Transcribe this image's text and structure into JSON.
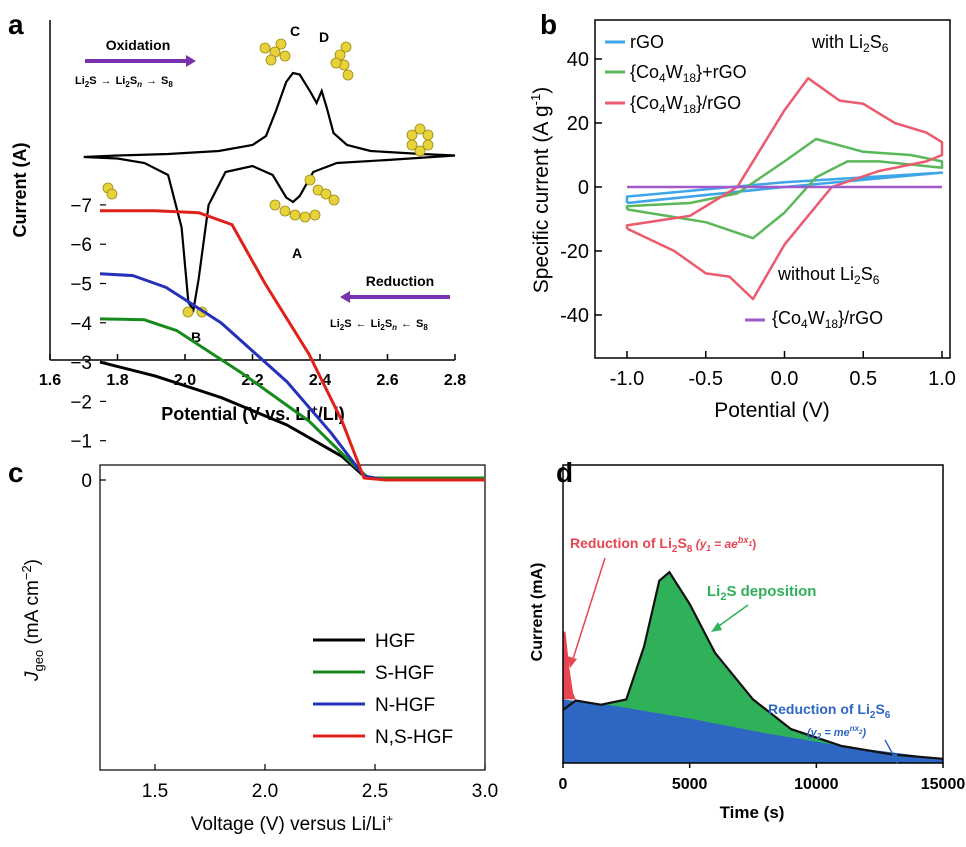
{
  "chart_data": [
    {
      "panel": "a",
      "type": "line",
      "xlabel": "Potential (V vs. Li",
      "xlabel_sup": "+",
      "xlabel_tail": "/Li)",
      "ylabel": "Current (A)",
      "xlim": [
        1.6,
        2.8
      ],
      "xticks": [
        "1.6",
        "1.8",
        "2.0",
        "2.2",
        "2.4",
        "2.6",
        "2.8"
      ],
      "peaks": [
        {
          "label": "A",
          "x": 2.32,
          "kind": "cathodic"
        },
        {
          "label": "B",
          "x": 2.02,
          "kind": "cathodic"
        },
        {
          "label": "C",
          "x": 2.32,
          "kind": "anodic"
        },
        {
          "label": "D",
          "x": 2.4,
          "kind": "anodic"
        }
      ],
      "annotations": {
        "oxidation": "Oxidation",
        "reduction": "Reduction",
        "ox_scheme": [
          "Li",
          "2",
          "S",
          "→",
          "Li",
          "2",
          "S",
          "n",
          "→",
          "S",
          "8"
        ],
        "red_scheme": [
          "Li",
          "2",
          "S",
          "←",
          "Li",
          "2",
          "S",
          "n",
          "←",
          "S",
          "8"
        ]
      },
      "curve": [
        [
          1.7,
          0.02
        ],
        [
          1.8,
          0.01
        ],
        [
          1.88,
          -0.02
        ],
        [
          1.95,
          -0.1
        ],
        [
          1.99,
          -0.45
        ],
        [
          2.01,
          -0.95
        ],
        [
          2.025,
          -1.0
        ],
        [
          2.04,
          -0.8
        ],
        [
          2.07,
          -0.3
        ],
        [
          2.12,
          -0.08
        ],
        [
          2.2,
          -0.04
        ],
        [
          2.26,
          -0.1
        ],
        [
          2.3,
          -0.25
        ],
        [
          2.32,
          -0.28
        ],
        [
          2.34,
          -0.24
        ],
        [
          2.38,
          -0.08
        ],
        [
          2.45,
          -0.02
        ],
        [
          2.6,
          0.0
        ],
        [
          2.8,
          0.03
        ],
        [
          2.7,
          0.04
        ],
        [
          2.55,
          0.06
        ],
        [
          2.48,
          0.1
        ],
        [
          2.44,
          0.18
        ],
        [
          2.42,
          0.35
        ],
        [
          2.405,
          0.46
        ],
        [
          2.39,
          0.38
        ],
        [
          2.37,
          0.46
        ],
        [
          2.34,
          0.57
        ],
        [
          2.32,
          0.58
        ],
        [
          2.3,
          0.52
        ],
        [
          2.27,
          0.33
        ],
        [
          2.24,
          0.16
        ],
        [
          2.2,
          0.1
        ],
        [
          2.1,
          0.06
        ],
        [
          1.95,
          0.04
        ],
        [
          1.8,
          0.03
        ],
        [
          1.7,
          0.02
        ]
      ]
    },
    {
      "panel": "b",
      "type": "line",
      "xlabel": "Potential (V)",
      "ylabel": "Specific current (A g",
      "ylabel_sup": "-1",
      "ylabel_tail": ")",
      "xlim": [
        -1.2,
        1.2
      ],
      "ylim": [
        -50,
        50
      ],
      "xticks": [
        "-1.0",
        "-0.5",
        "0.0",
        "0.5",
        "1.0"
      ],
      "yticks": [
        "-40",
        "-20",
        "0",
        "20",
        "40"
      ],
      "legend_title": [
        "with Li",
        "2",
        "S",
        "6"
      ],
      "legend_title2": [
        "without Li",
        "2",
        "S",
        "6"
      ],
      "colors": {
        "rGO": "#3ea6e8",
        "co_plus": "#5ab85a",
        "co_on": "#ec5a6e",
        "bare": "#a259c9"
      },
      "series": [
        {
          "name": [
            "rGO"
          ],
          "curve": [
            [
              -1,
              -5
            ],
            [
              0,
              0
            ],
            [
              1,
              4.5
            ],
            [
              0,
              1.5
            ],
            [
              -1,
              -3
            ],
            [
              -1,
              -5
            ]
          ]
        },
        {
          "name": [
            "{Co",
            "4",
            "W",
            "18",
            "}+rGO"
          ],
          "curve": [
            [
              -1,
              -7
            ],
            [
              -0.5,
              -11
            ],
            [
              -0.2,
              -16
            ],
            [
              0,
              -8
            ],
            [
              0.2,
              3
            ],
            [
              0.4,
              8
            ],
            [
              0.6,
              8
            ],
            [
              1,
              6
            ],
            [
              1,
              8
            ],
            [
              0.8,
              10
            ],
            [
              0.5,
              11
            ],
            [
              0.2,
              15
            ],
            [
              0,
              8
            ],
            [
              -0.3,
              -2
            ],
            [
              -0.6,
              -5
            ],
            [
              -1,
              -6
            ],
            [
              -1,
              -7
            ]
          ]
        },
        {
          "name": [
            "{Co",
            "4",
            "W",
            "18",
            "}/rGO"
          ],
          "curve": [
            [
              -1,
              -13
            ],
            [
              -0.7,
              -20
            ],
            [
              -0.5,
              -27
            ],
            [
              -0.35,
              -28
            ],
            [
              -0.2,
              -35
            ],
            [
              0,
              -18
            ],
            [
              0.3,
              0
            ],
            [
              0.6,
              5
            ],
            [
              0.9,
              8
            ],
            [
              1,
              10
            ],
            [
              1,
              14
            ],
            [
              0.9,
              17
            ],
            [
              0.7,
              20
            ],
            [
              0.5,
              26
            ],
            [
              0.35,
              27
            ],
            [
              0.15,
              34
            ],
            [
              0,
              24
            ],
            [
              -0.3,
              0
            ],
            [
              -0.6,
              -9
            ],
            [
              -1,
              -12
            ],
            [
              -1,
              -13
            ]
          ]
        },
        {
          "name": [
            "{Co",
            "4",
            "W",
            "18",
            "}/rGO"
          ],
          "curve": [
            [
              -1,
              0
            ],
            [
              1,
              0
            ]
          ]
        }
      ]
    },
    {
      "panel": "c",
      "type": "line",
      "xlabel": "Voltage (V) versus Li/Li",
      "xlabel_sup": "+",
      "ylabel": [
        "J",
        "geo",
        " (mA cm",
        "−2",
        ")"
      ],
      "xlim": [
        1.25,
        3.0
      ],
      "ylim": [
        -7.5,
        0.2
      ],
      "xticks": [
        "1.5",
        "2.0",
        "2.5",
        "3.0"
      ],
      "yticks": [
        "0",
        "−1",
        "−2",
        "−3",
        "−4",
        "−5",
        "−6",
        "−7"
      ],
      "series": [
        {
          "name": "HGF",
          "color": "#000000",
          "values": [
            [
              1.25,
              -3.0
            ],
            [
              1.5,
              -2.65
            ],
            [
              1.8,
              -2.1
            ],
            [
              2.1,
              -1.4
            ],
            [
              2.35,
              -0.6
            ],
            [
              2.45,
              -0.1
            ],
            [
              2.55,
              0
            ],
            [
              3.0,
              0
            ]
          ]
        },
        {
          "name": "S-HGF",
          "color": "#178a1e",
          "values": [
            [
              1.25,
              -4.1
            ],
            [
              1.45,
              -4.08
            ],
            [
              1.6,
              -3.8
            ],
            [
              1.9,
              -2.7
            ],
            [
              2.2,
              -1.5
            ],
            [
              2.4,
              -0.4
            ],
            [
              2.47,
              -0.05
            ],
            [
              2.55,
              -0.05
            ],
            [
              3.0,
              -0.05
            ]
          ]
        },
        {
          "name": "N-HGF",
          "color": "#2431b8",
          "values": [
            [
              1.25,
              -5.25
            ],
            [
              1.4,
              -5.2
            ],
            [
              1.55,
              -4.9
            ],
            [
              1.8,
              -4.0
            ],
            [
              2.1,
              -2.5
            ],
            [
              2.3,
              -1.2
            ],
            [
              2.45,
              -0.1
            ],
            [
              2.55,
              0
            ],
            [
              3.0,
              0
            ]
          ]
        },
        {
          "name": "N,S-HGF",
          "color": "#e0201a",
          "values": [
            [
              1.25,
              -6.85
            ],
            [
              1.5,
              -6.85
            ],
            [
              1.7,
              -6.8
            ],
            [
              1.85,
              -6.5
            ],
            [
              2.0,
              -5.0
            ],
            [
              2.2,
              -3.2
            ],
            [
              2.35,
              -1.5
            ],
            [
              2.45,
              -0.05
            ],
            [
              2.55,
              0
            ],
            [
              3.0,
              0
            ]
          ]
        }
      ]
    },
    {
      "panel": "d",
      "type": "area",
      "xlabel": "Time (s)",
      "ylabel": "Current (mA)",
      "xlim": [
        0,
        15000
      ],
      "xticks": [
        "0",
        "5000",
        "10000",
        "15000"
      ],
      "colors": {
        "spike": "#e64552",
        "green": "#2fb15a",
        "blue": "#2e66c4",
        "outline": "#111111"
      },
      "annotations": {
        "red": [
          "Reduction of Li",
          "2",
          "S",
          "8",
          " (y",
          "1",
          " = ae",
          "bx",
          "1",
          ")"
        ],
        "green": [
          "Li",
          "2",
          "S deposition"
        ],
        "blue": [
          "Reduction of Li",
          "2",
          "S",
          "6"
        ],
        "blue2": [
          "(y",
          "2",
          " = me",
          "nx",
          "2",
          ")"
        ]
      },
      "total": [
        [
          0,
          0.25
        ],
        [
          500,
          0.295
        ],
        [
          1500,
          0.275
        ],
        [
          2500,
          0.3
        ],
        [
          3200,
          0.55
        ],
        [
          3800,
          0.86
        ],
        [
          4200,
          0.9
        ],
        [
          5000,
          0.75
        ],
        [
          6000,
          0.52
        ],
        [
          7500,
          0.3
        ],
        [
          9000,
          0.16
        ],
        [
          11000,
          0.08
        ],
        [
          13000,
          0.04
        ],
        [
          15000,
          0.02
        ]
      ],
      "blue_series": [
        [
          0,
          0.3
        ],
        [
          2000,
          0.27
        ],
        [
          5000,
          0.21
        ],
        [
          8000,
          0.14
        ],
        [
          11000,
          0.08
        ],
        [
          15000,
          0.02
        ]
      ],
      "spike": [
        [
          0,
          0.3
        ],
        [
          0,
          0.62
        ],
        [
          100,
          0.62
        ],
        [
          250,
          0.45
        ],
        [
          400,
          0.33
        ],
        [
          500,
          0.3
        ]
      ]
    }
  ],
  "panel_letters": [
    "a",
    "b",
    "c",
    "d"
  ]
}
